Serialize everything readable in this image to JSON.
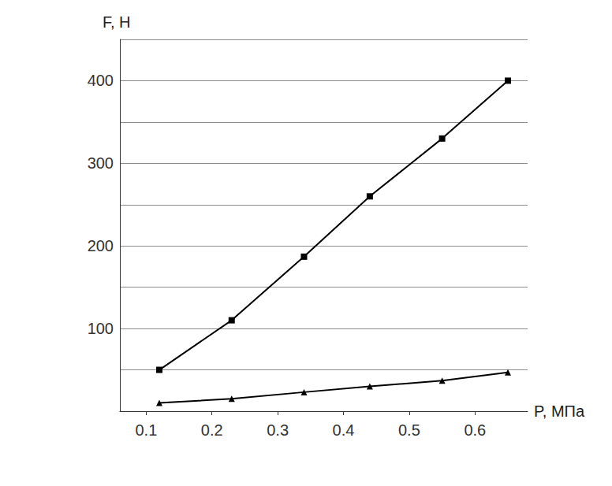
{
  "chart_data": {
    "type": "line",
    "x_label": "P, МПа",
    "y_label": "F, Н",
    "x": [
      0.12,
      0.23,
      0.34,
      0.44,
      0.55,
      0.65
    ],
    "series": [
      {
        "color": "#000000",
        "marker": "square",
        "values": [
          50,
          110,
          187,
          260,
          330,
          400
        ]
      },
      {
        "color": "#000000",
        "marker": "triangle",
        "values": [
          10,
          15,
          23,
          30,
          37,
          47
        ]
      }
    ],
    "xlim": [
      0.06,
      0.68
    ],
    "xticks": [
      0.1,
      0.2,
      0.3,
      0.4,
      0.5,
      0.6
    ],
    "ylim": [
      0,
      450
    ],
    "yticks": [
      100,
      200,
      300,
      400
    ],
    "grid": true
  }
}
